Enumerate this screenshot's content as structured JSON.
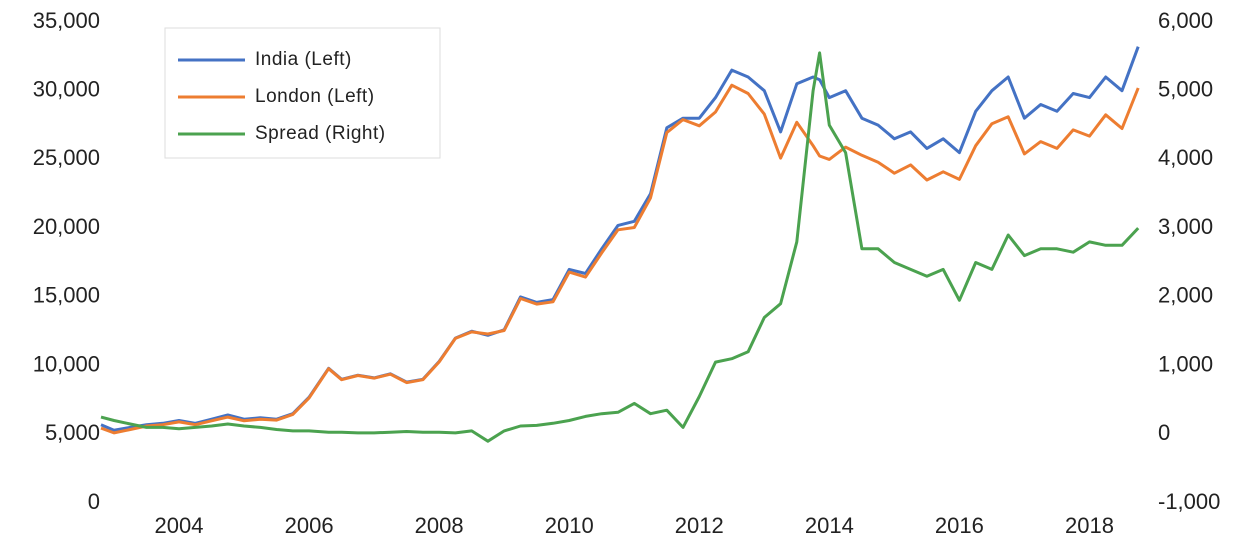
{
  "chart_data": {
    "type": "line",
    "x": [
      2002.8,
      2003,
      2003.25,
      2003.5,
      2003.75,
      2004,
      2004.25,
      2004.5,
      2004.75,
      2005,
      2005.25,
      2005.5,
      2005.75,
      2006,
      2006.3,
      2006.5,
      2006.75,
      2007,
      2007.25,
      2007.5,
      2007.75,
      2008,
      2008.25,
      2008.5,
      2008.75,
      2009,
      2009.25,
      2009.5,
      2009.75,
      2010,
      2010.25,
      2010.5,
      2010.75,
      2011,
      2011.25,
      2011.5,
      2011.75,
      2012,
      2012.25,
      2012.5,
      2012.75,
      2013,
      2013.25,
      2013.5,
      2013.75,
      2013.85,
      2014,
      2014.25,
      2014.5,
      2014.75,
      2015,
      2015.25,
      2015.5,
      2015.75,
      2016,
      2016.25,
      2016.5,
      2016.75,
      2017,
      2017.25,
      2017.5,
      2017.75,
      2018,
      2018.25,
      2018.5,
      2018.75
    ],
    "series": [
      {
        "name": "India (Left)",
        "color": "#4472c4",
        "values": [
          5700,
          5300,
          5500,
          5700,
          5800,
          6000,
          5800,
          6100,
          6400,
          6100,
          6200,
          6100,
          6500,
          7700,
          9800,
          9000,
          9300,
          9100,
          9400,
          8800,
          9000,
          10300,
          12000,
          12500,
          12200,
          12600,
          15000,
          14600,
          14800,
          17000,
          16700,
          18500,
          20200,
          20500,
          22500,
          27300,
          28000,
          28000,
          29500,
          31500,
          31000,
          30000,
          27000,
          30500,
          31000,
          30800,
          29500,
          30000,
          28000,
          27500,
          26500,
          27000,
          25800,
          26500,
          25500,
          28500,
          30000,
          31000,
          28000,
          29000,
          28500,
          29800,
          29500,
          31000,
          30000,
          33200
        ]
      },
      {
        "name": "London (Left)",
        "color": "#ed7d31",
        "values": [
          5450,
          5100,
          5350,
          5600,
          5700,
          5900,
          5700,
          5980,
          6250,
          5980,
          6100,
          6030,
          6450,
          7650,
          9770,
          8970,
          9280,
          9080,
          9370,
          8760,
          8970,
          10270,
          11980,
          12450,
          12300,
          12550,
          14880,
          14470,
          14640,
          16800,
          16440,
          18200,
          19880,
          20050,
          22200,
          26950,
          27900,
          27450,
          28450,
          30400,
          29800,
          28300,
          25100,
          27700,
          26000,
          25250,
          25000,
          25900,
          25300,
          24800,
          24000,
          24600,
          23500,
          24100,
          23550,
          26000,
          27600,
          28100,
          25400,
          26300,
          25800,
          27150,
          26700,
          28250,
          27250,
          30200
        ]
      },
      {
        "name": "Spread (Right)",
        "color": "#4ba24f",
        "axis": "y2",
        "values": [
          250,
          200,
          150,
          100,
          100,
          80,
          100,
          120,
          150,
          120,
          100,
          70,
          50,
          50,
          30,
          30,
          20,
          20,
          30,
          40,
          30,
          30,
          20,
          50,
          -100,
          50,
          120,
          130,
          160,
          200,
          260,
          300,
          320,
          450,
          300,
          350,
          100,
          550,
          1050,
          1100,
          1200,
          1700,
          1900,
          2800,
          5000,
          5550,
          4500,
          4100,
          2700,
          2700,
          2500,
          2400,
          2300,
          2400,
          1950,
          2500,
          2400,
          2900,
          2600,
          2700,
          2700,
          2650,
          2800,
          2750,
          2750,
          3000
        ]
      }
    ],
    "xlim": [
      2002.8,
      2018.9
    ],
    "xticks": [
      2004,
      2006,
      2008,
      2010,
      2012,
      2014,
      2016,
      2018
    ],
    "ylim": [
      0,
      35000
    ],
    "yticks": [
      0,
      {
        "value": 5000,
        "label": "5,000"
      },
      {
        "value": 10000,
        "label": "10,000"
      },
      {
        "value": 15000,
        "label": "15,000"
      },
      {
        "value": 20000,
        "label": "20,000"
      },
      {
        "value": 25000,
        "label": "25,000"
      },
      {
        "value": 30000,
        "label": "30,000"
      },
      {
        "value": 35000,
        "label": "35,000"
      }
    ],
    "y2lim": [
      -1000,
      6000
    ],
    "y2ticks": [
      {
        "value": -1000,
        "label": "-1,000"
      },
      0,
      {
        "value": 1000,
        "label": "1,000"
      },
      {
        "value": 2000,
        "label": "2,000"
      },
      {
        "value": 3000,
        "label": "3,000"
      },
      {
        "value": 4000,
        "label": "4,000"
      },
      {
        "value": 5000,
        "label": "5,000"
      },
      {
        "value": 6000,
        "label": "6,000"
      }
    ],
    "legend": "top-left"
  }
}
